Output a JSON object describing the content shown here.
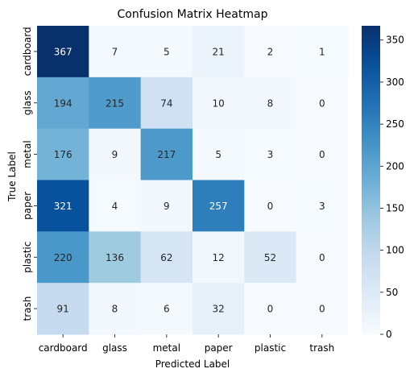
{
  "chart_data": {
    "type": "heatmap",
    "title": "Confusion Matrix Heatmap",
    "xlabel": "Predicted Label",
    "ylabel": "True Label",
    "x_categories": [
      "cardboard",
      "glass",
      "metal",
      "paper",
      "plastic",
      "trash"
    ],
    "y_categories": [
      "cardboard",
      "glass",
      "metal",
      "paper",
      "plastic",
      "trash"
    ],
    "values": [
      [
        367,
        7,
        5,
        21,
        2,
        1
      ],
      [
        194,
        215,
        74,
        10,
        8,
        0
      ],
      [
        176,
        9,
        217,
        5,
        3,
        0
      ],
      [
        321,
        4,
        9,
        257,
        0,
        3
      ],
      [
        220,
        136,
        62,
        12,
        52,
        0
      ],
      [
        91,
        8,
        6,
        32,
        0,
        0
      ]
    ],
    "colormap": "Blues",
    "colorbar": {
      "range": [
        0,
        367
      ],
      "ticks": [
        0,
        50,
        100,
        150,
        200,
        250,
        300,
        350
      ]
    },
    "grid": false,
    "annotations": true
  }
}
